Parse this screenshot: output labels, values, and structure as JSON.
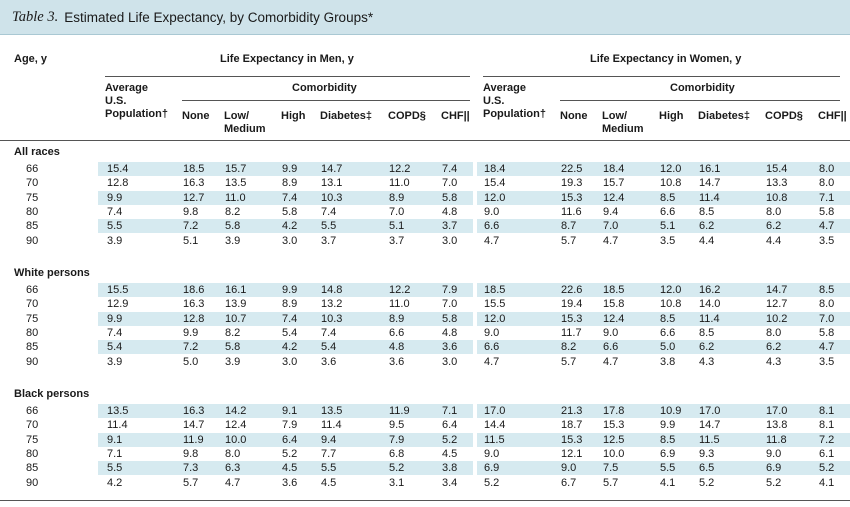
{
  "table": {
    "number": "Table 3.",
    "title": "Estimated Life Expectancy, by Comorbidity Groups*",
    "age_header": "Age, y",
    "men_header": "Life Expectancy in Men, y",
    "women_header": "Life Expectancy in Women, y",
    "average_header_lines": [
      "Average",
      "U.S.",
      "Population†"
    ],
    "comorbidity_header": "Comorbidity",
    "columns": [
      "None",
      "Low/",
      "Medium",
      "High",
      "Diabetes‡",
      "COPD§",
      "CHF||"
    ],
    "groups": [
      {
        "label": "All races",
        "rows": [
          {
            "age": "66",
            "men": [
              "15.4",
              "18.5",
              "15.7",
              "9.9",
              "14.7",
              "12.2",
              "7.4"
            ],
            "women": [
              "18.4",
              "22.5",
              "18.4",
              "12.0",
              "16.1",
              "15.4",
              "8.0"
            ]
          },
          {
            "age": "70",
            "men": [
              "12.8",
              "16.3",
              "13.5",
              "8.9",
              "13.1",
              "11.0",
              "7.0"
            ],
            "women": [
              "15.4",
              "19.3",
              "15.7",
              "10.8",
              "14.7",
              "13.3",
              "8.0"
            ]
          },
          {
            "age": "75",
            "men": [
              "9.9",
              "12.7",
              "11.0",
              "7.4",
              "10.3",
              "8.9",
              "5.8"
            ],
            "women": [
              "12.0",
              "15.3",
              "12.4",
              "8.5",
              "11.4",
              "10.8",
              "7.1"
            ]
          },
          {
            "age": "80",
            "men": [
              "7.4",
              "9.8",
              "8.2",
              "5.8",
              "7.4",
              "7.0",
              "4.8"
            ],
            "women": [
              "9.0",
              "11.6",
              "9.4",
              "6.6",
              "8.5",
              "8.0",
              "5.8"
            ]
          },
          {
            "age": "85",
            "men": [
              "5.5",
              "7.2",
              "5.8",
              "4.2",
              "5.5",
              "5.1",
              "3.7"
            ],
            "women": [
              "6.6",
              "8.7",
              "7.0",
              "5.1",
              "6.2",
              "6.2",
              "4.7"
            ]
          },
          {
            "age": "90",
            "men": [
              "3.9",
              "5.1",
              "3.9",
              "3.0",
              "3.7",
              "3.7",
              "3.0"
            ],
            "women": [
              "4.7",
              "5.7",
              "4.7",
              "3.5",
              "4.4",
              "4.4",
              "3.5"
            ]
          }
        ]
      },
      {
        "label": "White persons",
        "rows": [
          {
            "age": "66",
            "men": [
              "15.5",
              "18.6",
              "16.1",
              "9.9",
              "14.8",
              "12.2",
              "7.9"
            ],
            "women": [
              "18.5",
              "22.6",
              "18.5",
              "12.0",
              "16.2",
              "14.7",
              "8.5"
            ]
          },
          {
            "age": "70",
            "men": [
              "12.9",
              "16.3",
              "13.9",
              "8.9",
              "13.2",
              "11.0",
              "7.0"
            ],
            "women": [
              "15.5",
              "19.4",
              "15.8",
              "10.8",
              "14.0",
              "12.7",
              "8.0"
            ]
          },
          {
            "age": "75",
            "men": [
              "9.9",
              "12.8",
              "10.7",
              "7.4",
              "10.3",
              "8.9",
              "5.8"
            ],
            "women": [
              "12.0",
              "15.3",
              "12.4",
              "8.5",
              "11.4",
              "10.2",
              "7.0"
            ]
          },
          {
            "age": "80",
            "men": [
              "7.4",
              "9.9",
              "8.2",
              "5.4",
              "7.4",
              "6.6",
              "4.8"
            ],
            "women": [
              "9.0",
              "11.7",
              "9.0",
              "6.6",
              "8.5",
              "8.0",
              "5.8"
            ]
          },
          {
            "age": "85",
            "men": [
              "5.4",
              "7.2",
              "5.8",
              "4.2",
              "5.4",
              "4.8",
              "3.6"
            ],
            "women": [
              "6.6",
              "8.2",
              "6.6",
              "5.0",
              "6.2",
              "6.2",
              "4.7"
            ]
          },
          {
            "age": "90",
            "men": [
              "3.9",
              "5.0",
              "3.9",
              "3.0",
              "3.6",
              "3.6",
              "3.0"
            ],
            "women": [
              "4.7",
              "5.7",
              "4.7",
              "3.8",
              "4.3",
              "4.3",
              "3.5"
            ]
          }
        ]
      },
      {
        "label": "Black persons",
        "rows": [
          {
            "age": "66",
            "men": [
              "13.5",
              "16.3",
              "14.2",
              "9.1",
              "13.5",
              "11.9",
              "7.1"
            ],
            "women": [
              "17.0",
              "21.3",
              "17.8",
              "10.9",
              "17.0",
              "17.0",
              "8.1"
            ]
          },
          {
            "age": "70",
            "men": [
              "11.4",
              "14.7",
              "12.4",
              "7.9",
              "11.4",
              "9.5",
              "6.4"
            ],
            "women": [
              "14.4",
              "18.7",
              "15.3",
              "9.9",
              "14.7",
              "13.8",
              "8.1"
            ]
          },
          {
            "age": "75",
            "men": [
              "9.1",
              "11.9",
              "10.0",
              "6.4",
              "9.4",
              "7.9",
              "5.2"
            ],
            "women": [
              "11.5",
              "15.3",
              "12.5",
              "8.5",
              "11.5",
              "11.8",
              "7.2"
            ]
          },
          {
            "age": "80",
            "men": [
              "7.1",
              "9.8",
              "8.0",
              "5.2",
              "7.7",
              "6.8",
              "4.5"
            ],
            "women": [
              "9.0",
              "12.1",
              "10.0",
              "6.9",
              "9.3",
              "9.0",
              "6.1"
            ]
          },
          {
            "age": "85",
            "men": [
              "5.5",
              "7.3",
              "6.3",
              "4.5",
              "5.5",
              "5.2",
              "3.8"
            ],
            "women": [
              "6.9",
              "9.0",
              "7.5",
              "5.5",
              "6.5",
              "6.9",
              "5.2"
            ]
          },
          {
            "age": "90",
            "men": [
              "4.2",
              "5.7",
              "4.7",
              "3.6",
              "4.5",
              "3.1",
              "3.4"
            ],
            "women": [
              "5.2",
              "6.7",
              "5.7",
              "4.1",
              "5.2",
              "5.2",
              "4.1"
            ]
          }
        ]
      }
    ]
  }
}
